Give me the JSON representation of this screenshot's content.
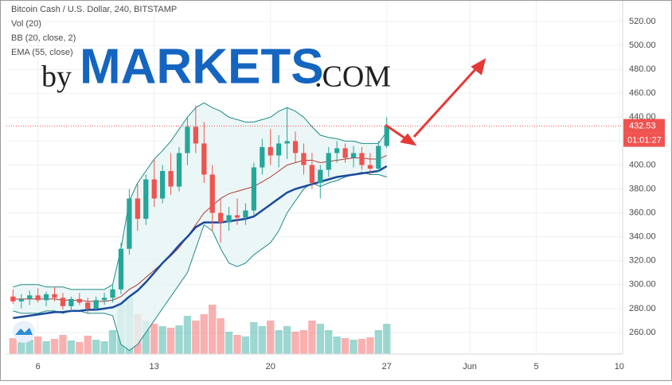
{
  "chart_data": {
    "type": "candlestick",
    "title": "Bitcoin Cash / U.S. Dollar, 240, BITSTAMP",
    "indicators": [
      "Vol (20)",
      "BB (20, close, 2)",
      "EMA (55, close)"
    ],
    "watermark": [
      "by",
      "MARKETS",
      ".COM"
    ],
    "up_color": "#26a69a",
    "down_color": "#ef5350",
    "x": [
      4.5,
      5,
      5.5,
      6,
      6.5,
      7,
      7.5,
      8,
      8.5,
      9,
      9.5,
      10,
      10.5,
      11,
      11.5,
      12,
      12.5,
      13,
      13.5,
      14,
      14.5,
      15,
      15.5,
      16,
      16.5,
      17,
      17.5,
      18,
      18.5,
      19,
      19.5,
      20,
      20.5,
      21,
      21.5,
      22,
      22.5,
      23,
      23.5,
      24,
      24.5,
      25,
      25.5,
      26,
      26.5,
      27
    ],
    "open": [
      290,
      286,
      288,
      291,
      287,
      292,
      289,
      282,
      288,
      285,
      280,
      287,
      289,
      296,
      330,
      372,
      355,
      388,
      372,
      395,
      382,
      410,
      432,
      418,
      392,
      360,
      352,
      358,
      356,
      362,
      398,
      415,
      408,
      418,
      420,
      410,
      400,
      385,
      396,
      410,
      414,
      406,
      410,
      400,
      397,
      416
    ],
    "high": [
      296,
      292,
      295,
      297,
      294,
      298,
      293,
      290,
      293,
      289,
      290,
      293,
      300,
      335,
      380,
      385,
      392,
      405,
      400,
      410,
      415,
      440,
      450,
      436,
      400,
      372,
      365,
      372,
      368,
      402,
      422,
      430,
      425,
      448,
      428,
      418,
      410,
      400,
      415,
      420,
      418,
      416,
      415,
      410,
      420,
      440
    ],
    "low": [
      284,
      280,
      283,
      285,
      282,
      286,
      279,
      278,
      283,
      276,
      278,
      283,
      285,
      292,
      325,
      345,
      350,
      365,
      368,
      375,
      378,
      400,
      410,
      385,
      345,
      335,
      345,
      350,
      350,
      358,
      392,
      400,
      398,
      405,
      402,
      392,
      380,
      372,
      390,
      402,
      402,
      398,
      396,
      392,
      394,
      414
    ],
    "close": [
      286,
      288,
      291,
      287,
      292,
      289,
      282,
      288,
      285,
      280,
      287,
      289,
      296,
      330,
      372,
      355,
      388,
      372,
      395,
      382,
      410,
      432,
      418,
      392,
      360,
      352,
      358,
      356,
      362,
      398,
      415,
      408,
      418,
      420,
      410,
      400,
      385,
      396,
      410,
      414,
      406,
      410,
      400,
      397,
      416,
      432.53
    ],
    "volume": [
      200,
      150,
      180,
      220,
      160,
      190,
      240,
      170,
      150,
      230,
      180,
      160,
      300,
      650,
      720,
      500,
      420,
      380,
      350,
      330,
      360,
      480,
      420,
      500,
      620,
      450,
      280,
      240,
      220,
      400,
      350,
      420,
      300,
      350,
      280,
      300,
      420,
      380,
      300,
      220,
      200,
      180,
      190,
      210,
      300,
      380
    ],
    "vlim": [
      0,
      900
    ],
    "bb": {
      "color": "#1f8a8a",
      "basis_color": "#b03a3a",
      "fill": "#e6f4f4",
      "upper": [
        298,
        300,
        300,
        300,
        298,
        298,
        298,
        296,
        296,
        296,
        296,
        296,
        300,
        330,
        370,
        385,
        395,
        405,
        412,
        420,
        430,
        440,
        448,
        452,
        448,
        445,
        440,
        438,
        436,
        436,
        438,
        440,
        445,
        448,
        445,
        440,
        432,
        425,
        423,
        422,
        420,
        420,
        418,
        418,
        418,
        428
      ],
      "basis": [
        288,
        288,
        288,
        288,
        288,
        288,
        287,
        287,
        287,
        286,
        286,
        286,
        287,
        290,
        296,
        300,
        306,
        312,
        318,
        324,
        331,
        340,
        350,
        360,
        366,
        372,
        376,
        378,
        380,
        382,
        386,
        390,
        395,
        400,
        402,
        404,
        404,
        402,
        403,
        404,
        405,
        406,
        406,
        405,
        405,
        408
      ],
      "lower": [
        278,
        276,
        276,
        276,
        278,
        278,
        276,
        278,
        278,
        276,
        276,
        276,
        274,
        250,
        245,
        250,
        260,
        270,
        280,
        290,
        300,
        310,
        330,
        350,
        345,
        330,
        318,
        315,
        318,
        325,
        330,
        335,
        345,
        360,
        370,
        380,
        385,
        382,
        385,
        387,
        390,
        392,
        394,
        392,
        392,
        390
      ]
    },
    "ema": {
      "color": "#1a4a9c",
      "values": [
        272,
        273,
        274,
        275,
        276,
        277,
        277,
        278,
        278,
        279,
        279,
        280,
        281,
        284,
        290,
        295,
        302,
        310,
        318,
        325,
        333,
        340,
        348,
        352,
        352,
        352,
        353,
        354,
        355,
        357,
        362,
        367,
        372,
        377,
        380,
        382,
        384,
        386,
        388,
        390,
        391,
        392,
        393,
        394,
        395,
        399
      ]
    },
    "current_price": 432.53,
    "countdown": "01:01:27",
    "xlim": [
      4.1,
      41.2
    ],
    "xticks": [
      6,
      13,
      20,
      27,
      {
        "value": 32,
        "label": "Jun"
      },
      {
        "value": 36,
        "label": "5"
      },
      {
        "value": 41,
        "label": "10"
      }
    ],
    "ylim": [
      242,
      538
    ],
    "yticks": [
      {
        "value": 260,
        "label": "260.00"
      },
      {
        "value": 280,
        "label": "280.00"
      },
      {
        "value": 300,
        "label": "300.00"
      },
      {
        "value": 320,
        "label": "320.00"
      },
      {
        "value": 340,
        "label": "340.00"
      },
      {
        "value": 360,
        "label": "360.00"
      },
      {
        "value": 380,
        "label": "380.00"
      },
      {
        "value": 400,
        "label": "400.00"
      },
      {
        "value": 420,
        "label": "420.00"
      },
      {
        "value": 440,
        "label": "440.00"
      },
      {
        "value": 460,
        "label": "460.00"
      },
      {
        "value": 480,
        "label": "480.00"
      },
      {
        "value": 500,
        "label": "500.00"
      },
      {
        "value": 520,
        "label": "520.00"
      }
    ],
    "grid": true
  }
}
